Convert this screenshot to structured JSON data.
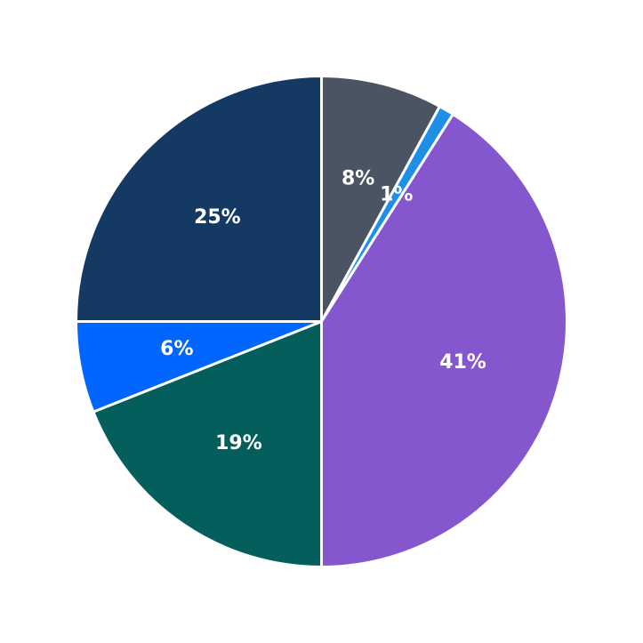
{
  "chart_data": {
    "type": "pie",
    "title": "",
    "start_angle_deg": 90,
    "direction": "clockwise",
    "slices": [
      {
        "value": 8,
        "label": "8%",
        "color": "#4a5462"
      },
      {
        "value": 1,
        "label": "1%",
        "color": "#1e8fe6"
      },
      {
        "value": 41,
        "label": "41%",
        "color": "#8557cf"
      },
      {
        "value": 19,
        "label": "19%",
        "color": "#035e5c"
      },
      {
        "value": 6,
        "label": "6%",
        "color": "#0066ff"
      },
      {
        "value": 25,
        "label": "25%",
        "color": "#143a63"
      }
    ]
  }
}
